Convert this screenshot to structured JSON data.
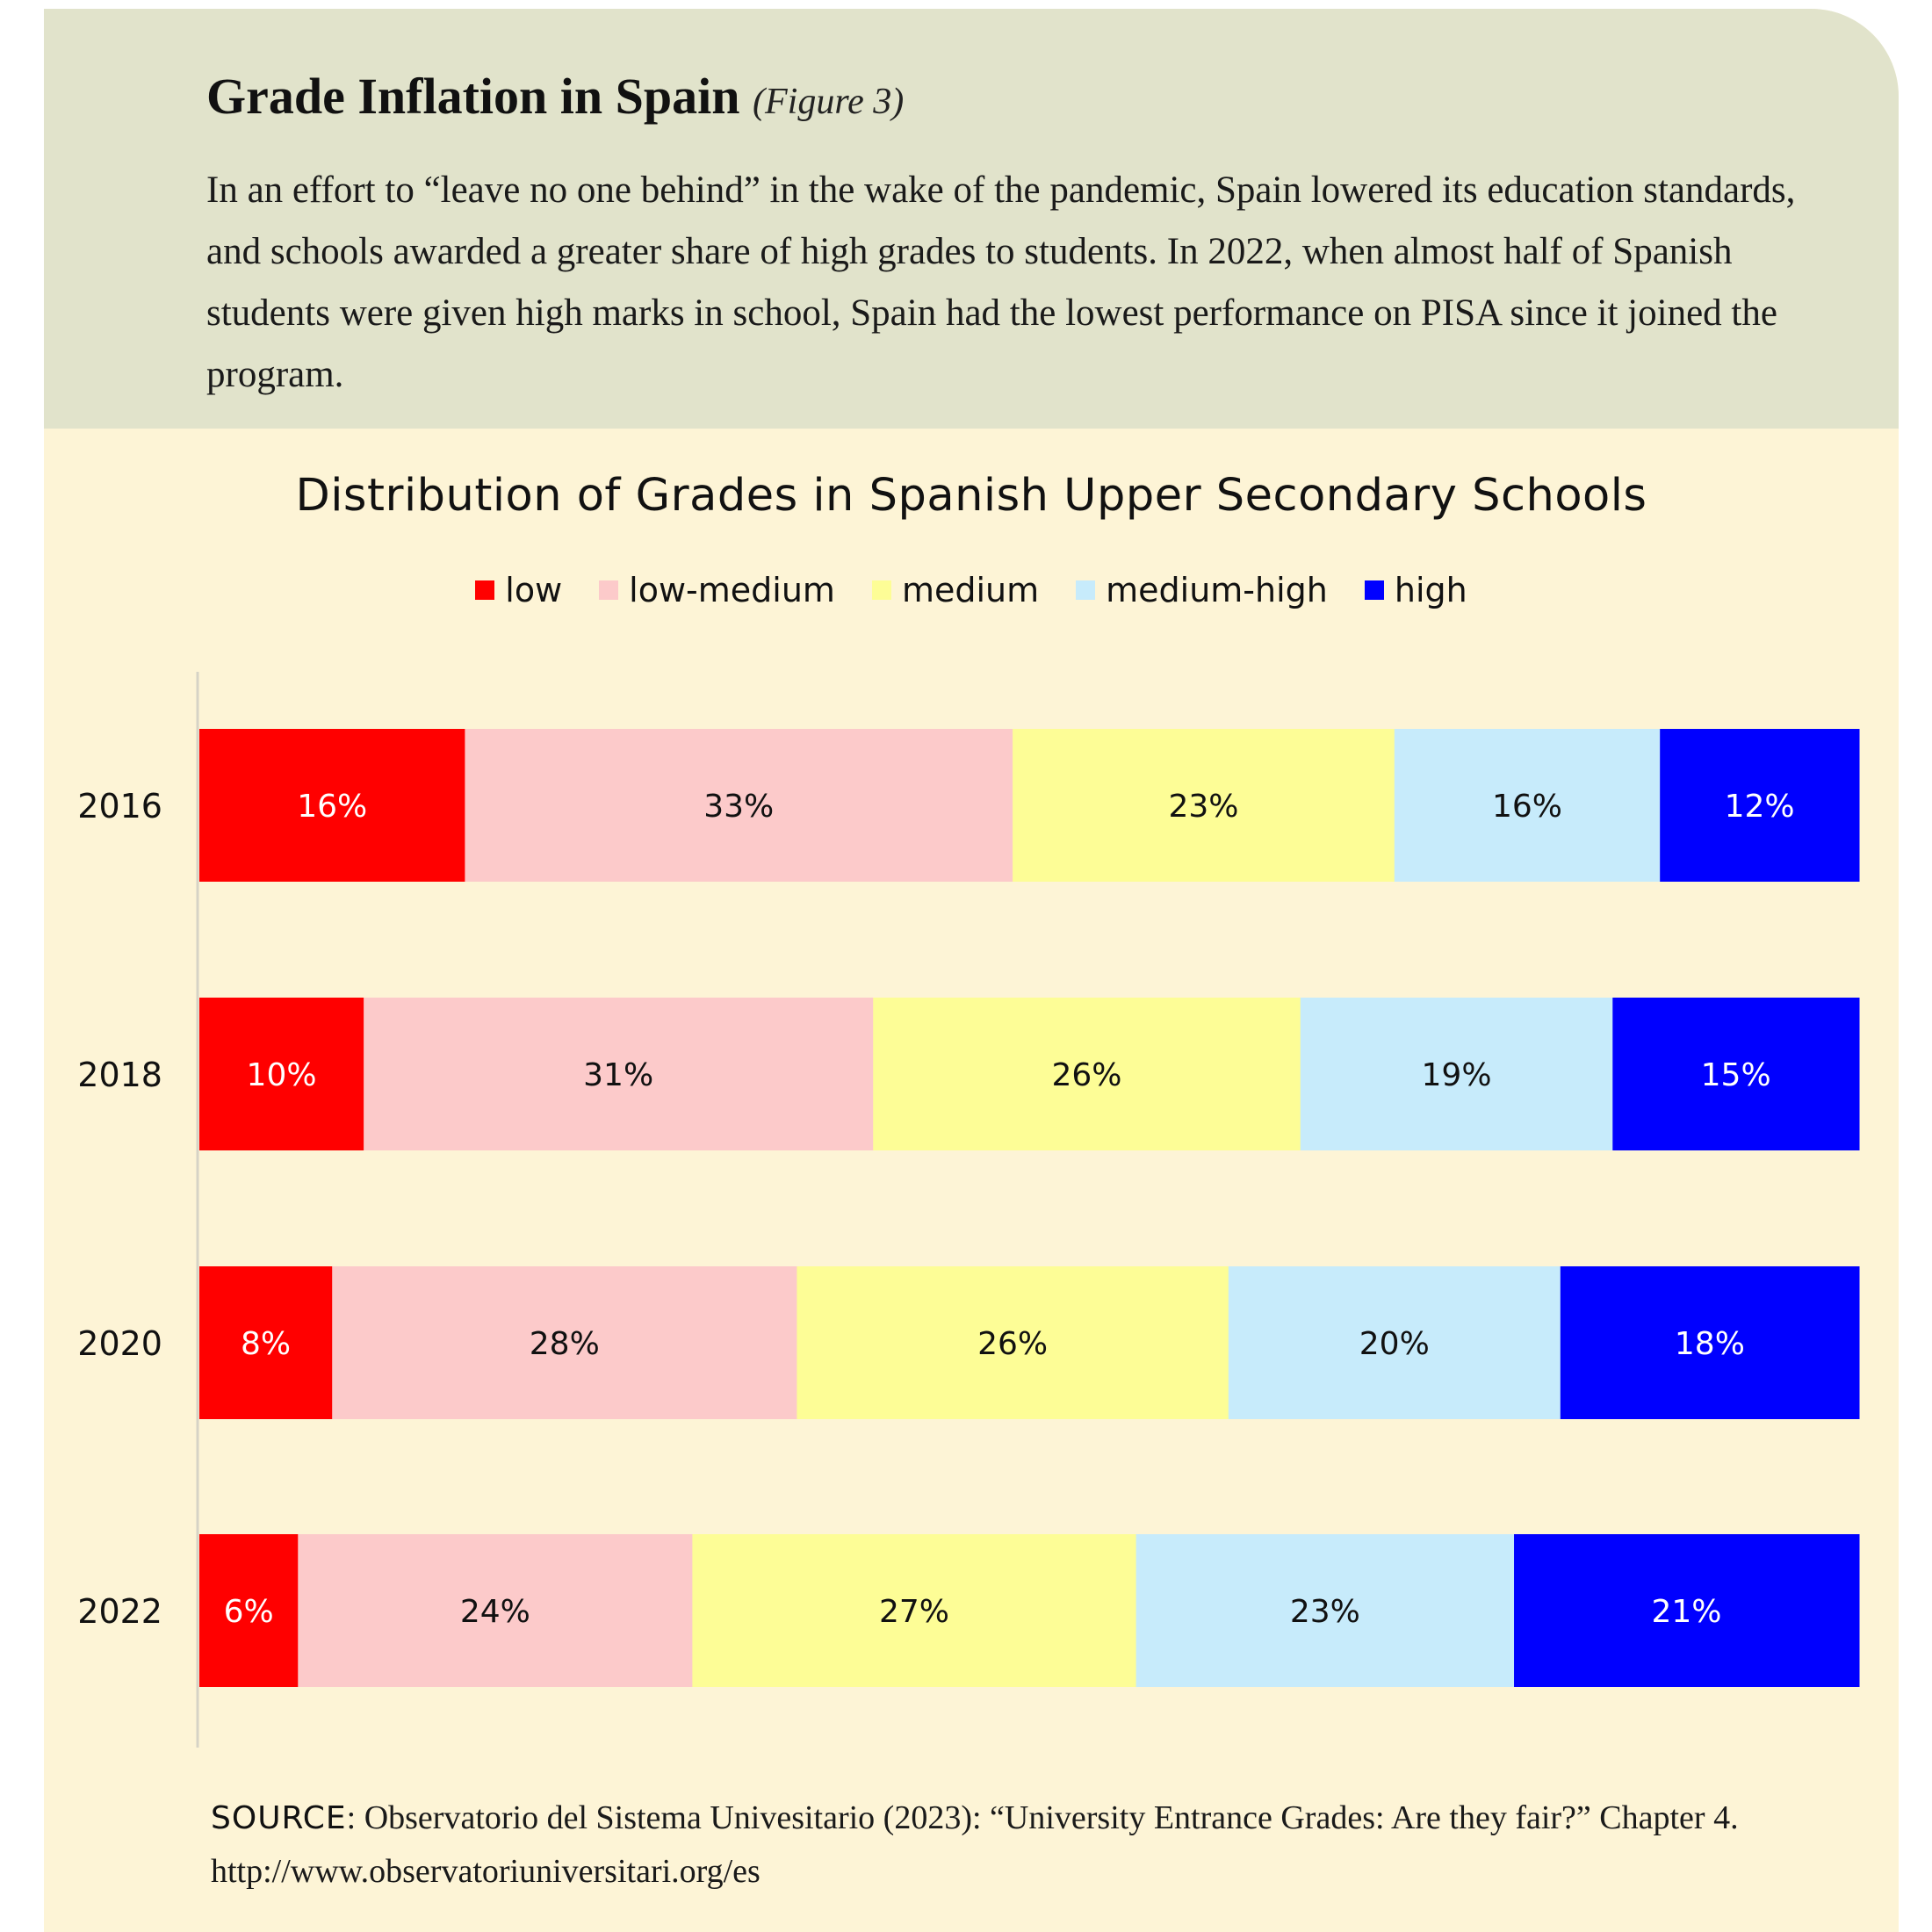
{
  "figure": {
    "title": "Grade Inflation in Spain",
    "subtitle": "(Figure 3)",
    "intro": "In an effort to “leave no one behind” in the wake of the pandemic, Spain lowered its education standards, and schools awarded a greater share of high grades to students. In 2022, when almost half of Spanish students were given high marks in school, Spain had the lowest performance on PISA since it joined the program."
  },
  "chart_data": {
    "type": "bar",
    "orientation": "horizontal",
    "stacked": true,
    "title": "Distribution of Grades in Spanish Upper Secondary Schools",
    "categories": [
      "2016",
      "2018",
      "2020",
      "2022"
    ],
    "series": [
      {
        "name": "low",
        "color": "#ff0000",
        "label_color": "#ffffff",
        "values": [
          16,
          10,
          8,
          6
        ]
      },
      {
        "name": "low-medium",
        "color": "#fccaca",
        "label_color": "#111111",
        "values": [
          33,
          31,
          28,
          24
        ]
      },
      {
        "name": "medium",
        "color": "#fdfd96",
        "label_color": "#111111",
        "values": [
          23,
          26,
          26,
          27
        ]
      },
      {
        "name": "medium-high",
        "color": "#c7ebfb",
        "label_color": "#111111",
        "values": [
          16,
          19,
          20,
          23
        ]
      },
      {
        "name": "high",
        "color": "#0000ff",
        "label_color": "#ffffff",
        "values": [
          12,
          15,
          18,
          21
        ]
      }
    ],
    "data_labels": [
      [
        "16%",
        "33%",
        "23%",
        "16%",
        "12%"
      ],
      [
        "10%",
        "31%",
        "26%",
        "19%",
        "15%"
      ],
      [
        "8%",
        "28%",
        "26%",
        "20%",
        "18%"
      ],
      [
        "6%",
        "24%",
        "27%",
        "23%",
        "21%"
      ]
    ],
    "legend_position": "top-center",
    "grid": false
  },
  "source": {
    "label": "SOURCE",
    "text": ": Observatorio del Sistema Univesitario (2023): “University Entrance Grades: Are they fair?” Chapter 4. http://www.observatoriuniversitari.org/es"
  },
  "colors": {
    "header_bg": "#e1e3cb",
    "body_bg": "#fdf4d6"
  }
}
